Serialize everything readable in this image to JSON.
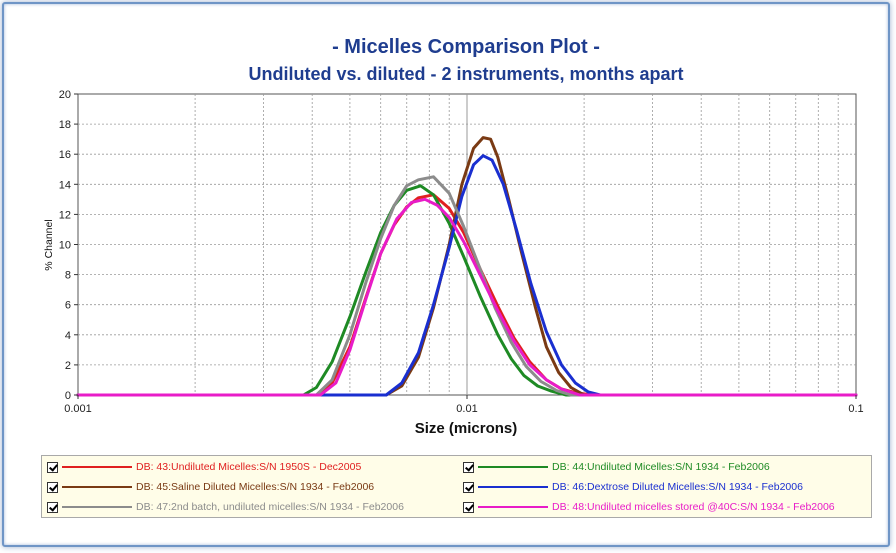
{
  "chart_data": {
    "type": "line",
    "title": "- Micelles Comparison Plot -",
    "subtitle": "Undiluted vs. diluted - 2 instruments, months apart",
    "xlabel": "Size (microns)",
    "ylabel": "% Channel",
    "x_scale": "log",
    "xlim": [
      0.001,
      0.1
    ],
    "ylim": [
      0,
      20
    ],
    "x_ticks": [
      "0.001",
      "0.01",
      "0.1"
    ],
    "y_ticks": [
      "0",
      "2",
      "4",
      "6",
      "8",
      "10",
      "12",
      "14",
      "16",
      "18",
      "20"
    ],
    "grid": true,
    "legend_position": "bottom",
    "series": [
      {
        "name": "DB: 43:Undiluted Micelles:S/N 1950S - Dec2005",
        "color": "#e02020",
        "x": [
          0.001,
          0.0042,
          0.0045,
          0.005,
          0.0055,
          0.006,
          0.0065,
          0.007,
          0.0075,
          0.0082,
          0.009,
          0.0098,
          0.0108,
          0.012,
          0.0132,
          0.0145,
          0.016,
          0.0175,
          0.019,
          0.021,
          0.1
        ],
        "y": [
          0,
          0,
          0.8,
          3.2,
          6.5,
          9.4,
          11.3,
          12.5,
          13.1,
          13.3,
          12.4,
          10.8,
          8.4,
          5.9,
          3.8,
          2.2,
          1.0,
          0.4,
          0.15,
          0,
          0
        ]
      },
      {
        "name": "DB: 44:Undiluted Micelles:S/N 1934 - Feb2006",
        "color": "#1e8a24",
        "x": [
          0.001,
          0.0038,
          0.0041,
          0.0045,
          0.005,
          0.0055,
          0.006,
          0.0065,
          0.007,
          0.0076,
          0.0082,
          0.009,
          0.0098,
          0.0108,
          0.012,
          0.013,
          0.014,
          0.0152,
          0.0165,
          0.018,
          0.1
        ],
        "y": [
          0,
          0,
          0.5,
          2.2,
          5.2,
          8.2,
          10.8,
          12.6,
          13.6,
          13.9,
          13.3,
          11.4,
          9.2,
          6.6,
          4.0,
          2.4,
          1.3,
          0.6,
          0.25,
          0,
          0
        ]
      },
      {
        "name": "DB: 45:Saline Diluted Micelles:S/N 1934 - Feb2006",
        "color": "#7a3a14",
        "x": [
          0.001,
          0.0062,
          0.0068,
          0.0075,
          0.0082,
          0.009,
          0.0097,
          0.0104,
          0.011,
          0.0115,
          0.012,
          0.0128,
          0.0138,
          0.015,
          0.016,
          0.0172,
          0.0185,
          0.02,
          0.1
        ],
        "y": [
          0,
          0,
          0.6,
          2.5,
          5.8,
          10.0,
          14.0,
          16.4,
          17.1,
          17.0,
          15.8,
          13.0,
          9.5,
          5.8,
          3.2,
          1.5,
          0.5,
          0,
          0
        ]
      },
      {
        "name": "DB: 46:Dextrose Diluted Micelles:S/N 1934 - Feb2006",
        "color": "#1a2fd0",
        "x": [
          0.001,
          0.0062,
          0.0068,
          0.0075,
          0.0082,
          0.009,
          0.0097,
          0.0104,
          0.011,
          0.0116,
          0.0124,
          0.0134,
          0.0146,
          0.016,
          0.0175,
          0.019,
          0.0205,
          0.022,
          0.1
        ],
        "y": [
          0,
          0,
          0.8,
          2.8,
          6.0,
          9.8,
          13.2,
          15.3,
          15.9,
          15.6,
          14.0,
          11.0,
          7.4,
          4.2,
          2.0,
          0.8,
          0.2,
          0,
          0
        ]
      },
      {
        "name": "DB: 47:2nd batch, undiluted micelles:S/N 1934 - Feb2006",
        "color": "#8c8c8c",
        "x": [
          0.001,
          0.0041,
          0.0045,
          0.005,
          0.0055,
          0.006,
          0.0065,
          0.007,
          0.0075,
          0.0082,
          0.009,
          0.0098,
          0.0108,
          0.0118,
          0.013,
          0.0142,
          0.0155,
          0.017,
          0.0185,
          0.1
        ],
        "y": [
          0,
          0,
          1.0,
          4.0,
          7.5,
          10.4,
          12.6,
          13.9,
          14.3,
          14.5,
          13.4,
          11.2,
          8.4,
          5.8,
          3.5,
          1.9,
          0.9,
          0.3,
          0,
          0
        ]
      },
      {
        "name": "DB: 48:Undiluted micelles stored @40C:S/N 1934 - Feb2006",
        "color": "#e81cc8",
        "x": [
          0.001,
          0.0042,
          0.0046,
          0.005,
          0.0055,
          0.006,
          0.0066,
          0.0072,
          0.0078,
          0.0084,
          0.009,
          0.0098,
          0.0108,
          0.012,
          0.0132,
          0.0145,
          0.016,
          0.0175,
          0.0195,
          0.1
        ],
        "y": [
          0,
          0,
          0.8,
          3.0,
          6.4,
          9.4,
          11.7,
          12.8,
          13.0,
          12.6,
          11.8,
          10.2,
          8.0,
          5.6,
          3.6,
          2.0,
          1.0,
          0.4,
          0,
          0
        ]
      }
    ]
  },
  "legend": {
    "items": [
      {
        "label": "DB: 43:Undiluted Micelles:S/N 1950S - Dec2005",
        "color": "#e02020",
        "checked": true
      },
      {
        "label": "DB: 44:Undiluted Micelles:S/N 1934 - Feb2006",
        "color": "#1e8a24",
        "checked": true
      },
      {
        "label": "DB: 45:Saline Diluted Micelles:S/N 1934 - Feb2006",
        "color": "#7a3a14",
        "checked": true
      },
      {
        "label": "DB: 46:Dextrose Diluted Micelles:S/N 1934 - Feb2006",
        "color": "#1a2fd0",
        "checked": true
      },
      {
        "label": "DB: 47:2nd batch, undiluted micelles:S/N 1934 - Feb2006",
        "color": "#8c8c8c",
        "checked": true
      },
      {
        "label": "DB: 48:Undiluted micelles stored @40C:S/N 1934 - Feb2006",
        "color": "#e81cc8",
        "checked": true
      }
    ]
  }
}
